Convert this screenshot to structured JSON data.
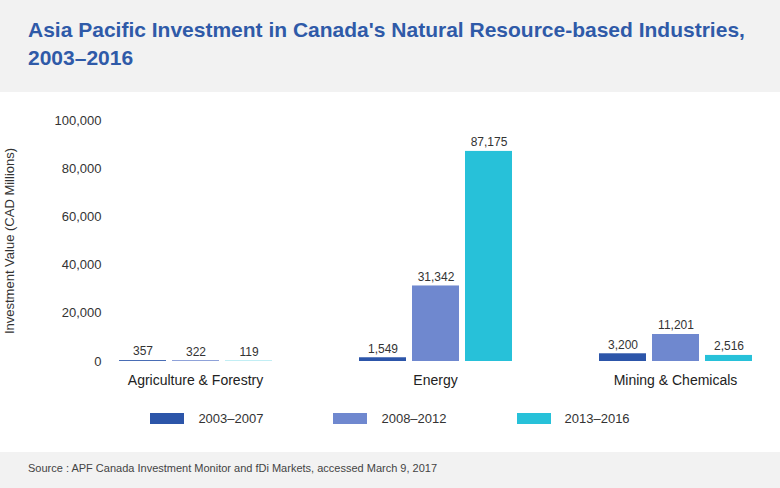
{
  "chart_data": {
    "type": "bar",
    "title": "Asia Pacific Investment in Canada's Natural Resource-based Industries, 2003–2016",
    "y_label": "Investment Value (CAD Millions)",
    "source": "Source : APF Canada Investment Monitor and fDi Markets, accessed March 9, 2017",
    "categories": [
      "Agriculture & Forestry",
      "Energy",
      "Mining & Chemicals"
    ],
    "series": [
      {
        "name": "2003–2007",
        "color": "#2c55a9",
        "values": [
          357,
          1549,
          3200
        ],
        "value_labels": [
          "357",
          "1,549",
          "3,200"
        ]
      },
      {
        "name": "2008–2012",
        "color": "#6f88cf",
        "values": [
          322,
          31342,
          11201
        ],
        "value_labels": [
          "322",
          "31,342",
          "11,201"
        ]
      },
      {
        "name": "2013–2016",
        "color": "#27c1d9",
        "values": [
          119,
          87175,
          2516
        ],
        "value_labels": [
          "119",
          "87,175",
          "2,516"
        ]
      }
    ],
    "ylim": [
      0,
      100000
    ],
    "yticks": [
      0,
      {
        "value": 20000,
        "label": "20,000"
      },
      {
        "value": 40000,
        "label": "40,000"
      },
      {
        "value": 60000,
        "label": "60,000"
      },
      {
        "value": 80000,
        "label": "80,000"
      },
      {
        "value": 100000,
        "label": "100,000"
      }
    ],
    "grid": false,
    "legend": "bottom",
    "data_labels": true
  }
}
